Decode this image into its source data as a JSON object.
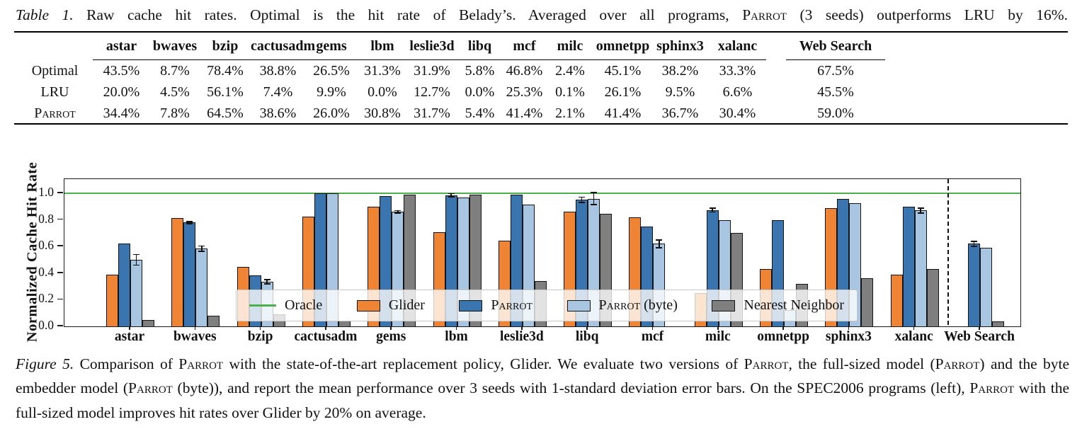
{
  "table": {
    "caption_label": "Table 1.",
    "caption_text": "Raw cache hit rates. Optimal is the hit rate of Belady’s. Averaged over all programs, Parrot (3 seeds) outperforms LRU by 16%.",
    "columns": [
      "astar",
      "bwaves",
      "bzip",
      "cactusadm",
      "gems",
      "lbm",
      "leslie3d",
      "libq",
      "mcf",
      "milc",
      "omnetpp",
      "sphinx3",
      "xalanc",
      "Web Search"
    ],
    "rows": [
      {
        "label": "Optimal",
        "values": [
          "43.5%",
          "8.7%",
          "78.4%",
          "38.8%",
          "26.5%",
          "31.3%",
          "31.9%",
          "5.8%",
          "46.8%",
          "2.4%",
          "45.1%",
          "38.2%",
          "33.3%",
          "67.5%"
        ]
      },
      {
        "label": "LRU",
        "values": [
          "20.0%",
          "4.5%",
          "56.1%",
          "7.4%",
          "9.9%",
          "0.0%",
          "12.7%",
          "0.0%",
          "25.3%",
          "0.1%",
          "26.1%",
          "9.5%",
          "6.6%",
          "45.5%"
        ]
      },
      {
        "label": "Parrot",
        "values": [
          "34.4%",
          "7.8%",
          "64.5%",
          "38.6%",
          "26.0%",
          "30.8%",
          "31.7%",
          "5.4%",
          "41.4%",
          "2.1%",
          "41.4%",
          "36.7%",
          "30.4%",
          "59.0%"
        ]
      }
    ]
  },
  "chart_data": {
    "type": "bar",
    "title": "",
    "xlabel": "",
    "ylabel": "Normalized Cache Hit Rate",
    "ylim": [
      0.0,
      1.1
    ],
    "yticks": [
      "0.0",
      "0.2",
      "0.4",
      "0.6",
      "0.8",
      "1.0"
    ],
    "grid": false,
    "legend_position": "lower center inside",
    "oracle_line": {
      "label": "Oracle",
      "value": 1.0,
      "color": "#4cb04c"
    },
    "separator": {
      "style": "dashed",
      "between": [
        "xalanc",
        "Web Search"
      ]
    },
    "categories": [
      "astar",
      "bwaves",
      "bzip",
      "cactusadm",
      "gems",
      "lbm",
      "leslie3d",
      "libq",
      "mcf",
      "milc",
      "omnetpp",
      "sphinx3",
      "xalanc",
      "Web Search"
    ],
    "series": [
      {
        "name": "Glider",
        "color": "#ee8434",
        "values": [
          0.39,
          0.815,
          0.445,
          0.825,
          0.9,
          0.71,
          0.645,
          0.86,
          0.82,
          0.25,
          0.43,
          0.89,
          0.39,
          null
        ],
        "err": [
          0,
          0,
          0,
          0,
          0,
          0,
          0,
          0,
          0,
          0,
          0,
          0,
          0,
          0
        ]
      },
      {
        "name": "Parrot",
        "color": "#3b75af",
        "values": [
          0.62,
          0.78,
          0.385,
          1.0,
          0.98,
          0.985,
          0.99,
          0.95,
          0.75,
          0.875,
          0.8,
          0.955,
          0.9,
          0.62
        ],
        "err": [
          0,
          0.008,
          0,
          0,
          0,
          0.012,
          0,
          0.02,
          0,
          0.015,
          0,
          0,
          0,
          0.02
        ]
      },
      {
        "name": "Parrot (byte)",
        "color": "#a8c6e2",
        "values": [
          0.5,
          0.585,
          0.335,
          1.0,
          0.86,
          0.97,
          0.915,
          0.96,
          0.62,
          0.8,
          0.12,
          0.925,
          0.87,
          0.59
        ],
        "err": [
          0.04,
          0.02,
          0.015,
          0,
          0.01,
          0,
          0,
          0.045,
          0.03,
          0,
          0,
          0,
          0.02,
          0
        ]
      },
      {
        "name": "Nearest Neighbor",
        "color": "#7f7f7f",
        "values": [
          0.05,
          0.08,
          0.09,
          0.04,
          0.99,
          0.99,
          0.34,
          0.845,
          null,
          0.7,
          0.32,
          0.36,
          0.43,
          0.035
        ],
        "err": [
          0,
          0,
          0,
          0,
          0,
          0,
          0,
          0,
          0,
          0,
          0,
          0,
          0,
          0
        ]
      }
    ],
    "legend": [
      "Oracle",
      "Glider",
      "Parrot",
      "Parrot (byte)",
      "Nearest Neighbor"
    ]
  },
  "figure": {
    "caption_label": "Figure 5.",
    "caption_text": "Comparison of Parrot with the state-of-the-art replacement policy, Glider. We evaluate two versions of Parrot, the full-sized model (Parrot) and the byte embedder model (Parrot (byte)), and report the mean performance over 3 seeds with 1-standard deviation error bars. On the SPEC2006 programs (left), Parrot with the full-sized model improves hit rates over Glider by 20% on average."
  }
}
